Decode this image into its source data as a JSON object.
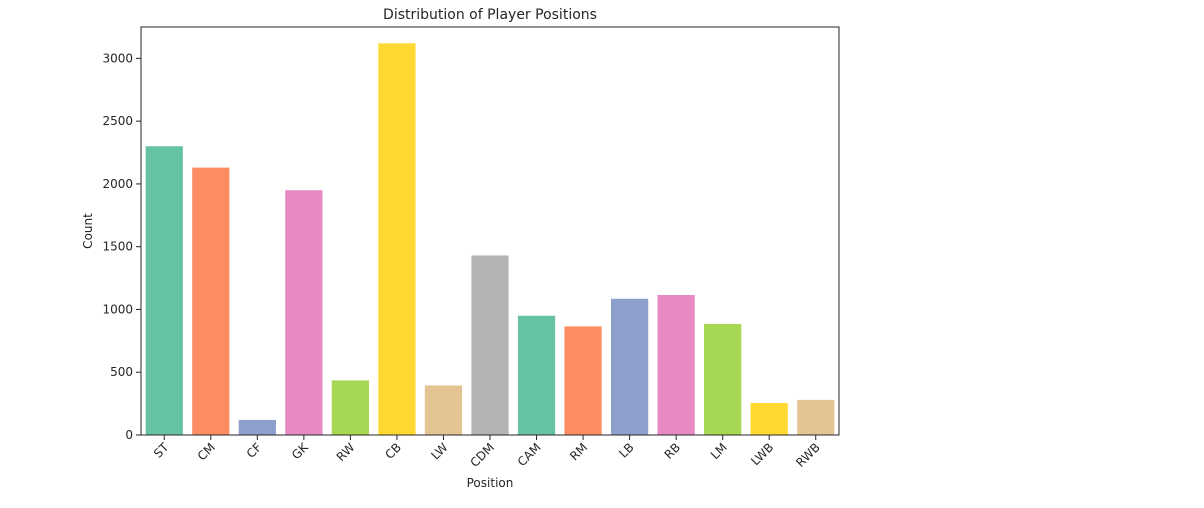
{
  "chart_data": {
    "type": "bar",
    "title": "Distribution of Player Positions",
    "xlabel": "Position",
    "ylabel": "Count",
    "ylim": [
      0,
      3250
    ],
    "yticks": [
      0,
      500,
      1000,
      1500,
      2000,
      2500,
      3000
    ],
    "categories": [
      "ST",
      "CM",
      "CF",
      "GK",
      "RW",
      "CB",
      "LW",
      "CDM",
      "CAM",
      "RM",
      "LB",
      "RB",
      "LM",
      "LWB",
      "RWB"
    ],
    "values": [
      2300,
      2130,
      120,
      1950,
      435,
      3120,
      395,
      1430,
      950,
      865,
      1085,
      1115,
      885,
      255,
      280
    ],
    "colors": [
      "#66c2a5",
      "#fc8d62",
      "#8da0cb",
      "#e78ac3",
      "#a6d854",
      "#ffd92f",
      "#e5c494",
      "#b3b3b3",
      "#66c2a5",
      "#fc8d62",
      "#8da0cb",
      "#e78ac3",
      "#a6d854",
      "#ffd92f",
      "#e5c494"
    ],
    "grid": false,
    "legend": "none"
  }
}
